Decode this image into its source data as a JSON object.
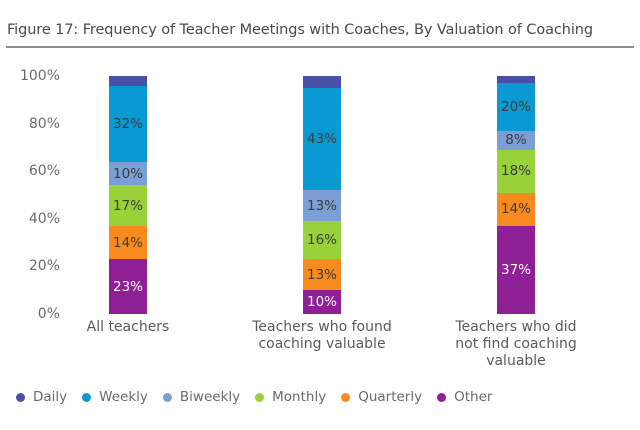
{
  "figure": {
    "title": "Figure 17: Frequency of Teacher Meetings with Coaches, By Valuation of Coaching"
  },
  "colors": {
    "Daily": "#4a4fa8",
    "Weekly": "#0a9ad3",
    "Biweekly": "#7b9fd4",
    "Monthly": "#98d13a",
    "Quarterly": "#f88a1e",
    "Other": "#8e1f94"
  },
  "yaxis": {
    "ticks": [
      "100%",
      "80%",
      "60%",
      "40%",
      "20%",
      "0%"
    ]
  },
  "bars": [
    {
      "label_lines": [
        "All teachers"
      ],
      "segments": [
        {
          "name": "Daily",
          "value": 4,
          "label": ""
        },
        {
          "name": "Weekly",
          "value": 32,
          "label": "32%"
        },
        {
          "name": "Biweekly",
          "value": 10,
          "label": "10%"
        },
        {
          "name": "Monthly",
          "value": 17,
          "label": "17%"
        },
        {
          "name": "Quarterly",
          "value": 14,
          "label": "14%"
        },
        {
          "name": "Other",
          "value": 23,
          "label": "23%"
        }
      ]
    },
    {
      "label_lines": [
        "Teachers who found",
        "coaching valuable"
      ],
      "segments": [
        {
          "name": "Daily",
          "value": 5,
          "label": ""
        },
        {
          "name": "Weekly",
          "value": 43,
          "label": "43%"
        },
        {
          "name": "Biweekly",
          "value": 13,
          "label": "13%"
        },
        {
          "name": "Monthly",
          "value": 16,
          "label": "16%"
        },
        {
          "name": "Quarterly",
          "value": 13,
          "label": "13%"
        },
        {
          "name": "Other",
          "value": 10,
          "label": "10%"
        }
      ]
    },
    {
      "label_lines": [
        "Teachers who did",
        "not find coaching",
        "valuable"
      ],
      "segments": [
        {
          "name": "Daily",
          "value": 3,
          "label": ""
        },
        {
          "name": "Weekly",
          "value": 20,
          "label": "20%"
        },
        {
          "name": "Biweekly",
          "value": 8,
          "label": "8%"
        },
        {
          "name": "Monthly",
          "value": 18,
          "label": "18%"
        },
        {
          "name": "Quarterly",
          "value": 14,
          "label": "14%"
        },
        {
          "name": "Other",
          "value": 37,
          "label": "37%"
        }
      ]
    }
  ],
  "legend": {
    "items": [
      {
        "label": "Daily",
        "color": "#4a4fa8"
      },
      {
        "label": "Weekly",
        "color": "#0a9ad3"
      },
      {
        "label": "Biweekly",
        "color": "#7b9fd4"
      },
      {
        "label": "Monthly",
        "color": "#98d13a"
      },
      {
        "label": "Quarterly",
        "color": "#f88a1e"
      },
      {
        "label": "Other",
        "color": "#8e1f94"
      }
    ]
  },
  "chart_data": {
    "type": "bar",
    "stacked": true,
    "title": "Figure 17: Frequency of Teacher Meetings with Coaches, By Valuation of Coaching",
    "xlabel": "",
    "ylabel": "",
    "ylim": [
      0,
      100
    ],
    "yticks": [
      "0%",
      "20%",
      "40%",
      "60%",
      "80%",
      "100%"
    ],
    "grid": false,
    "legend_position": "bottom",
    "categories": [
      "All teachers",
      "Teachers who found coaching valuable",
      "Teachers who did not find coaching valuable"
    ],
    "series": [
      {
        "name": "Daily",
        "color": "#4a4fa8",
        "values": [
          4,
          5,
          3
        ]
      },
      {
        "name": "Weekly",
        "color": "#0a9ad3",
        "values": [
          32,
          43,
          20
        ]
      },
      {
        "name": "Biweekly",
        "color": "#7b9fd4",
        "values": [
          10,
          13,
          8
        ]
      },
      {
        "name": "Monthly",
        "color": "#98d13a",
        "values": [
          17,
          16,
          18
        ]
      },
      {
        "name": "Quarterly",
        "color": "#f88a1e",
        "values": [
          14,
          13,
          14
        ]
      },
      {
        "name": "Other",
        "color": "#8e1f94",
        "values": [
          23,
          10,
          37
        ]
      }
    ]
  }
}
